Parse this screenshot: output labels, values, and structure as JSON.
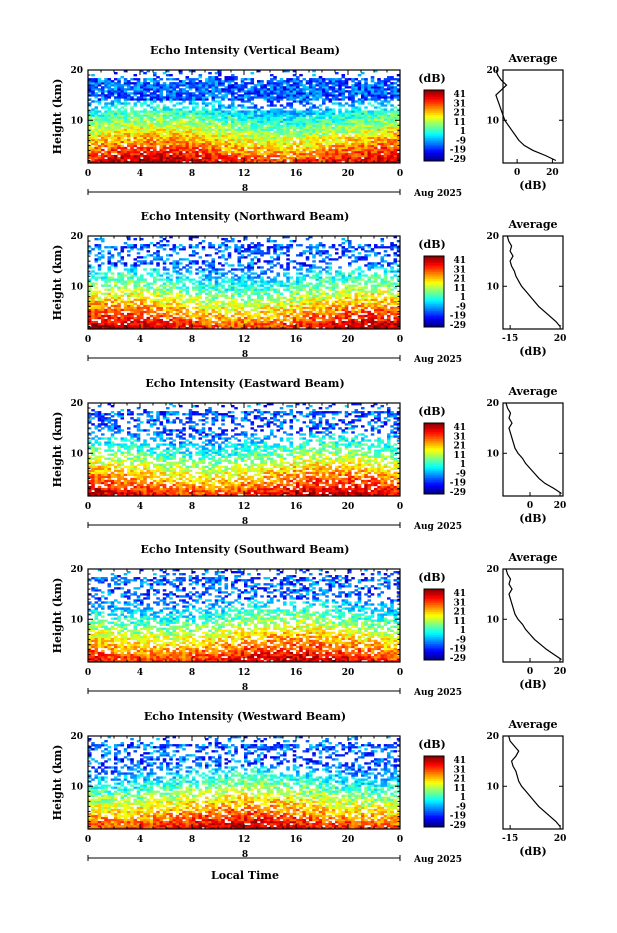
{
  "chart_data": {
    "type": "heatmap",
    "date_label": "Aug 2025",
    "day_marker": "8",
    "x_axis_label": "Local Time",
    "y_axis_label": "Height (km)",
    "x_ticks": [
      "0",
      "4",
      "8",
      "12",
      "16",
      "20",
      "0"
    ],
    "y_ticks": [
      "20",
      "10"
    ],
    "xlim": [
      0,
      24
    ],
    "ylim": [
      1.5,
      20
    ],
    "colorbar": {
      "label": "(dB)",
      "ticks": [
        "41",
        "31",
        "21",
        "11",
        "1",
        "-9",
        "-19",
        "-29"
      ],
      "range": [
        -29,
        41
      ]
    },
    "average_title": "Average",
    "average_xlabel": "(dB)",
    "panels": [
      {
        "title": "Echo Intensity (Vertical Beam)",
        "avg_x_ticks": [
          "0",
          "20"
        ],
        "avg_xlim": [
          -8,
          26
        ],
        "profile": [
          [
            2,
            22
          ],
          [
            3,
            16
          ],
          [
            4,
            9
          ],
          [
            5,
            4
          ],
          [
            6,
            1
          ],
          [
            7,
            -1
          ],
          [
            8,
            -3
          ],
          [
            9,
            -5
          ],
          [
            10,
            -7
          ],
          [
            11,
            -8
          ],
          [
            12,
            -9
          ],
          [
            13,
            -10
          ],
          [
            14,
            -11
          ],
          [
            15,
            -12
          ],
          [
            16,
            -9
          ],
          [
            17,
            -6
          ],
          [
            18,
            -9
          ],
          [
            19,
            -11
          ],
          [
            20,
            -12
          ]
        ]
      },
      {
        "title": "Echo Intensity (Northward Beam)",
        "avg_x_ticks": [
          "-15",
          "20"
        ],
        "avg_xlim": [
          -20,
          22
        ],
        "profile": [
          [
            2,
            20
          ],
          [
            3,
            17
          ],
          [
            4,
            13
          ],
          [
            5,
            9
          ],
          [
            6,
            5
          ],
          [
            7,
            2
          ],
          [
            8,
            -1
          ],
          [
            9,
            -4
          ],
          [
            10,
            -7
          ],
          [
            11,
            -9
          ],
          [
            12,
            -11
          ],
          [
            13,
            -12
          ],
          [
            14,
            -14
          ],
          [
            15,
            -15
          ],
          [
            16,
            -13
          ],
          [
            17,
            -15
          ],
          [
            18,
            -14
          ],
          [
            19,
            -16
          ],
          [
            20,
            -17
          ]
        ]
      },
      {
        "title": "Echo Intensity (Eastward Beam)",
        "avg_x_ticks": [
          "0",
          "20"
        ],
        "avg_xlim": [
          -18,
          22
        ],
        "profile": [
          [
            2,
            21
          ],
          [
            3,
            16
          ],
          [
            4,
            10
          ],
          [
            5,
            6
          ],
          [
            6,
            3
          ],
          [
            7,
            0
          ],
          [
            8,
            -3
          ],
          [
            9,
            -5
          ],
          [
            10,
            -8
          ],
          [
            11,
            -10
          ],
          [
            12,
            -11
          ],
          [
            13,
            -12
          ],
          [
            14,
            -13
          ],
          [
            15,
            -14
          ],
          [
            16,
            -12
          ],
          [
            17,
            -14
          ],
          [
            18,
            -13
          ],
          [
            19,
            -15
          ],
          [
            20,
            -16
          ]
        ]
      },
      {
        "title": "Echo Intensity (Southward Beam)",
        "avg_x_ticks": [
          "0",
          "20"
        ],
        "avg_xlim": [
          -18,
          22
        ],
        "profile": [
          [
            2,
            21
          ],
          [
            3,
            16
          ],
          [
            4,
            11
          ],
          [
            5,
            7
          ],
          [
            6,
            3
          ],
          [
            7,
            0
          ],
          [
            8,
            -3
          ],
          [
            9,
            -5
          ],
          [
            10,
            -8
          ],
          [
            11,
            -10
          ],
          [
            12,
            -11
          ],
          [
            13,
            -12
          ],
          [
            14,
            -13
          ],
          [
            15,
            -14
          ],
          [
            16,
            -12
          ],
          [
            17,
            -14
          ],
          [
            18,
            -13
          ],
          [
            19,
            -15
          ],
          [
            20,
            -16
          ]
        ]
      },
      {
        "title": "Echo Intensity (Westward Beam)",
        "avg_x_ticks": [
          "-15",
          "20"
        ],
        "avg_xlim": [
          -20,
          22
        ],
        "profile": [
          [
            2,
            20
          ],
          [
            3,
            17
          ],
          [
            4,
            13
          ],
          [
            5,
            9
          ],
          [
            6,
            5
          ],
          [
            7,
            2
          ],
          [
            8,
            -1
          ],
          [
            9,
            -4
          ],
          [
            10,
            -7
          ],
          [
            11,
            -9
          ],
          [
            12,
            -10
          ],
          [
            13,
            -11
          ],
          [
            14,
            -13
          ],
          [
            15,
            -14
          ],
          [
            16,
            -11
          ],
          [
            17,
            -9
          ],
          [
            18,
            -12
          ],
          [
            19,
            -15
          ],
          [
            20,
            -16
          ]
        ]
      }
    ]
  }
}
